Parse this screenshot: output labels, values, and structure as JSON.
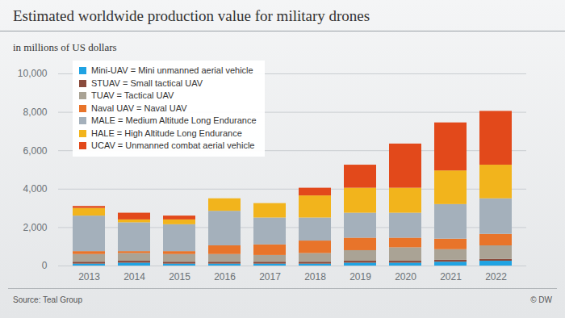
{
  "chart_data": {
    "type": "bar",
    "title": "Estimated worldwide production value for military drones",
    "subtitle": "in millions of US dollars",
    "source": "Source: Teal Group",
    "credit": "© DW",
    "categories": [
      "2013",
      "2014",
      "2015",
      "2016",
      "2017",
      "2018",
      "2019",
      "2020",
      "2021",
      "2022"
    ],
    "series": [
      {
        "name": "Mini-UAV = Mini unmanned aerial vehicle",
        "color": "#1fa3e3",
        "values": [
          100,
          150,
          100,
          100,
          100,
          100,
          150,
          150,
          200,
          250
        ]
      },
      {
        "name": "STUAV = Small tactical UAV",
        "color": "#8a4b3c",
        "values": [
          100,
          100,
          100,
          100,
          100,
          100,
          100,
          100,
          100,
          100
        ]
      },
      {
        "name": "TUAV =  Tactical UAV",
        "color": "#aaa395",
        "values": [
          400,
          400,
          400,
          400,
          350,
          450,
          550,
          700,
          550,
          700
        ]
      },
      {
        "name": "Naval UAV = Naval UAV",
        "color": "#e8742a",
        "values": [
          150,
          100,
          150,
          450,
          550,
          650,
          650,
          500,
          550,
          600
        ]
      },
      {
        "name": "MALE =  Medium Altitude Long Endurance",
        "color": "#a4b0bb",
        "values": [
          1850,
          1500,
          1400,
          1800,
          1400,
          1200,
          1300,
          1300,
          1800,
          1850
        ]
      },
      {
        "name": "HALE = High Altitude Long Endurance",
        "color": "#f2b41c",
        "values": [
          400,
          150,
          250,
          650,
          750,
          1150,
          1300,
          1300,
          1750,
          1750
        ]
      },
      {
        "name": "UCAV =  Unmanned combat aerial vehicle",
        "color": "#e2491b",
        "values": [
          100,
          350,
          200,
          0,
          0,
          400,
          1200,
          2300,
          2500,
          2800
        ]
      }
    ],
    "ylim": [
      0,
      10000
    ],
    "yticks": [
      0,
      2000,
      4000,
      6000,
      8000,
      10000
    ],
    "stacked": true,
    "grid": true,
    "legend": "top-left"
  }
}
